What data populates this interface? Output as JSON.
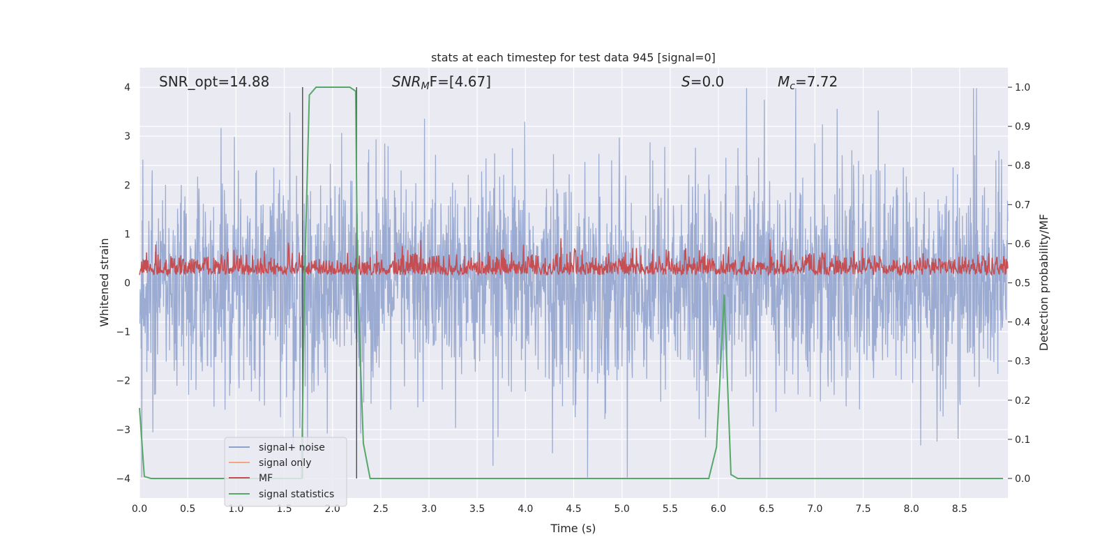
{
  "chart_data": {
    "type": "line",
    "title": "stats at each timestep for test data 945 [signal=0]",
    "xlabel": "Time (s)",
    "ylabel_left": "Whitened strain",
    "ylabel_right": "Detection probability/MF",
    "xlim": [
      0,
      9
    ],
    "ylim_left": [
      -4.4,
      4.4
    ],
    "ylim_right": [
      -0.05,
      1.05
    ],
    "x_ticks": [
      "0.0",
      "0.5",
      "1.0",
      "1.5",
      "2.0",
      "2.5",
      "3.0",
      "3.5",
      "4.0",
      "4.5",
      "5.0",
      "5.5",
      "6.0",
      "6.5",
      "7.0",
      "7.5",
      "8.0",
      "8.5"
    ],
    "y_ticks_left": [
      "−4",
      "−3",
      "−2",
      "−1",
      "0",
      "1",
      "2",
      "3",
      "4"
    ],
    "y_ticks_right": [
      "0.0",
      "0.1",
      "0.2",
      "0.3",
      "0.4",
      "0.5",
      "0.6",
      "0.7",
      "0.8",
      "0.9",
      "1.0"
    ],
    "grid": true,
    "legend_position": "bottom-left",
    "legend": [
      "signal+ noise",
      "signal only",
      "MF",
      "signal statistics"
    ],
    "annotations": {
      "snr_opt": "SNR_opt=14.88",
      "snr_mf_base": "SNR",
      "snr_mf_sub": "M",
      "snr_mf_rest": "F=[4.67]",
      "s_main": "S",
      "s_rest": "=0.0",
      "mc_main": "M",
      "mc_sub": "c",
      "mc_rest": "=7.72"
    },
    "vertical_markers_x": [
      1.69,
      2.25
    ],
    "series": [
      {
        "name": "signal+ noise",
        "color": "#8da0cb",
        "description_values": "dense noise approx. within [-4, 4], mostly within [-2, 2]"
      },
      {
        "name": "signal only",
        "color": "#f4a582",
        "values": []
      },
      {
        "name": "MF",
        "color": "#c44e52",
        "axis": "right",
        "range": [
          0.5,
          0.62
        ]
      },
      {
        "name": "signal statistics",
        "color": "#55a868",
        "axis": "right",
        "x": [
          0.0,
          0.05,
          0.12,
          0.3,
          1.5,
          1.68,
          1.71,
          1.76,
          1.83,
          2.18,
          2.24,
          2.26,
          2.32,
          2.39,
          2.5,
          5.9,
          5.98,
          6.06,
          6.13,
          6.2,
          6.4,
          8.95
        ],
        "y": [
          0.18,
          0.005,
          0.0,
          0.0,
          0.0,
          0.0,
          0.5,
          0.98,
          1.0,
          1.0,
          0.99,
          0.5,
          0.09,
          0.0,
          0.0,
          0.0,
          0.08,
          0.47,
          0.01,
          0.0,
          0.0,
          0.0
        ]
      }
    ]
  }
}
